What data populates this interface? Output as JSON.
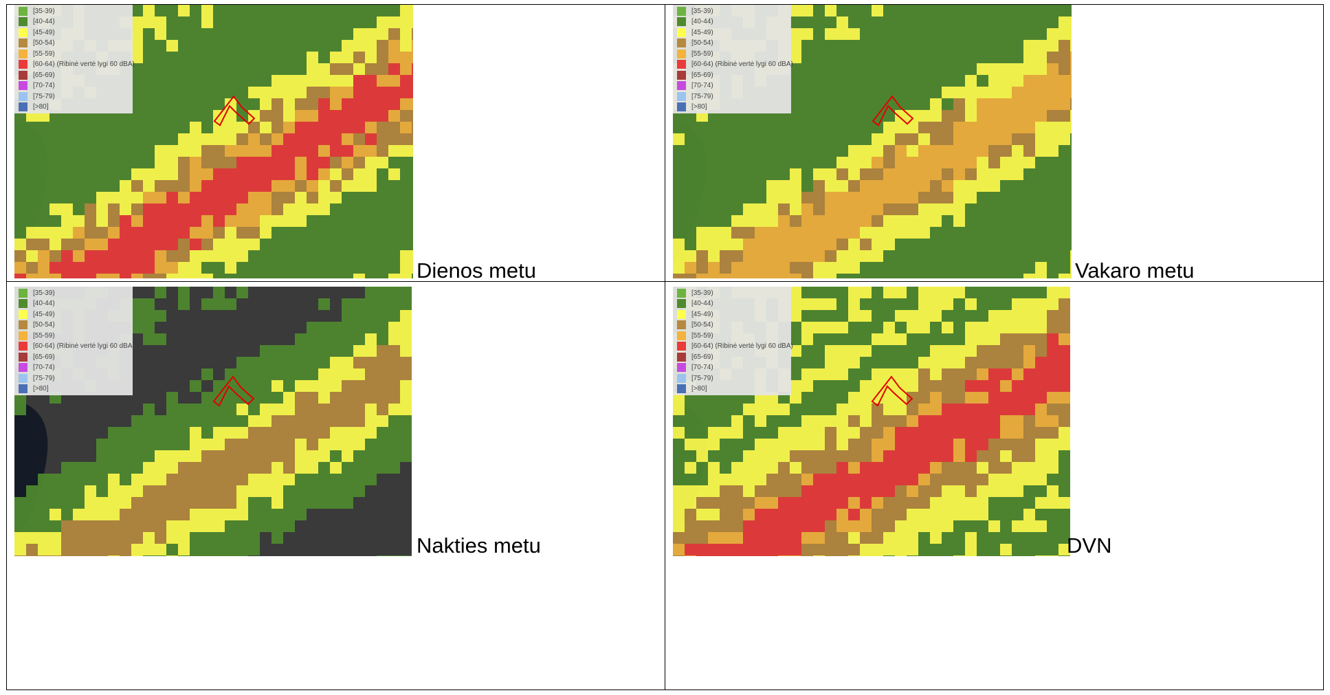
{
  "legend": {
    "items": [
      {
        "label": "[35-39)",
        "color": "#6db33f"
      },
      {
        "label": "[40-44)",
        "color": "#4f8a2f"
      },
      {
        "label": "[45-49)",
        "color": "#ffff4d"
      },
      {
        "label": "[50-54)",
        "color": "#b5893f"
      },
      {
        "label": "[55-59)",
        "color": "#f3b33d"
      },
      {
        "label": "[60-64) (Ribinė vertė lygi 60 dBA)",
        "color": "#ea3b3b"
      },
      {
        "label": "[65-69)",
        "color": "#a83b3b"
      },
      {
        "label": "[70-74)",
        "color": "#c74be0"
      },
      {
        "label": "[75-79)",
        "color": "#9cc3f0"
      },
      {
        "label": "[>80]",
        "color": "#4a6fb5"
      }
    ]
  },
  "panels": [
    {
      "caption": "Dienos metu"
    },
    {
      "caption": "Vakaro metu"
    },
    {
      "caption": "Nakties metu"
    },
    {
      "caption": "DVN"
    }
  ],
  "colors": {
    "background_map": "#3a3a3a",
    "river": "#141a26",
    "building_marker": "#e00000"
  }
}
